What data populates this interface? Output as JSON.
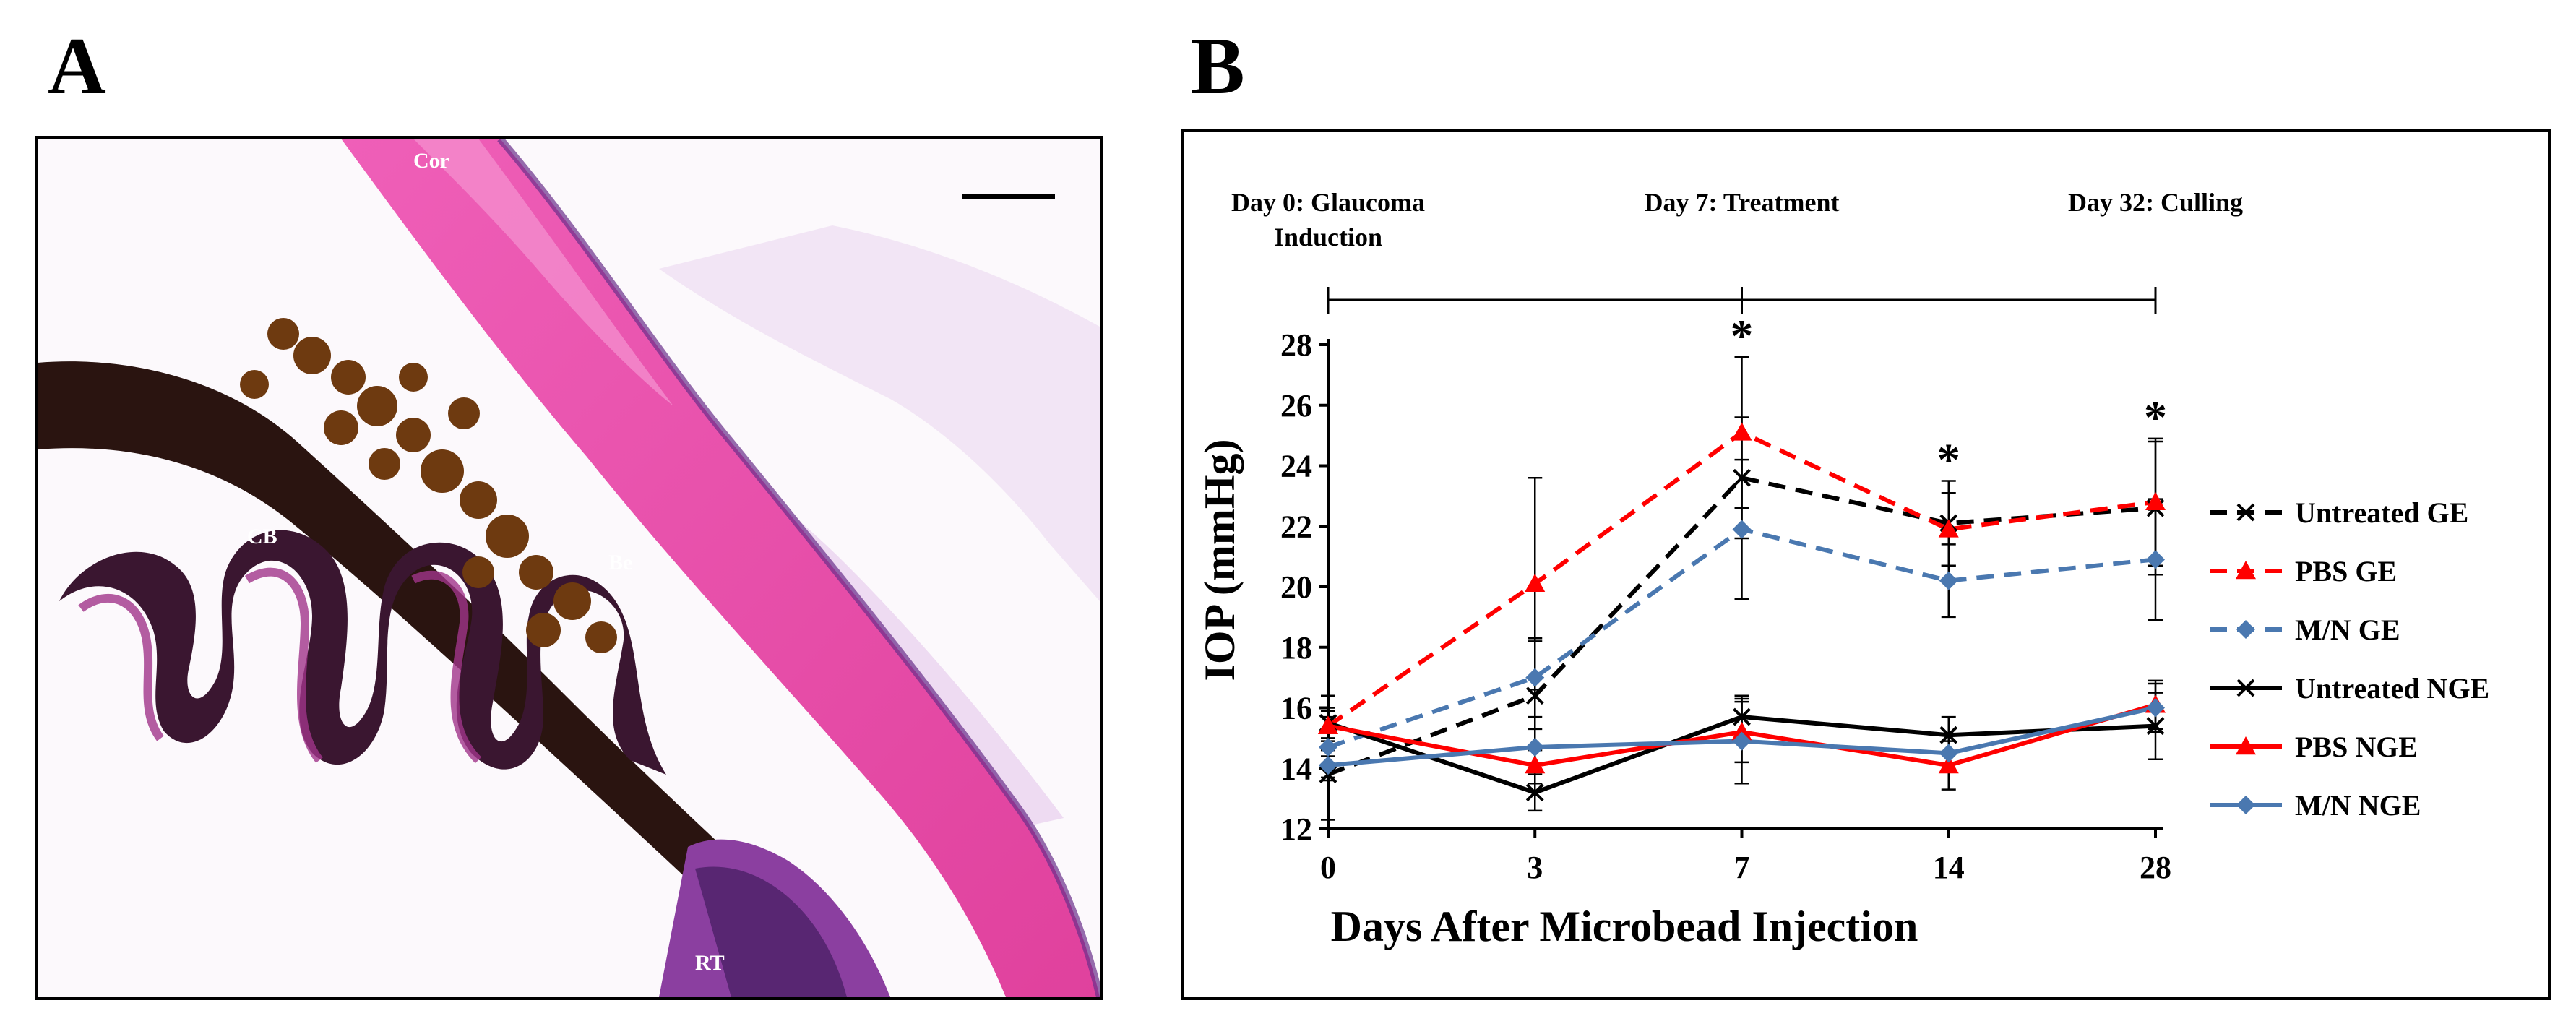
{
  "panel_a": {
    "letter": "A",
    "labels": {
      "cornea": "Cor",
      "ciliary_body": "CB",
      "beads": "Be",
      "retina": "RT"
    }
  },
  "panel_b": {
    "letter": "B"
  },
  "chart_data": {
    "type": "line",
    "timeline": {
      "events": [
        {
          "day": 0,
          "label_lines": [
            "Day 0: Glaucoma",
            "Induction"
          ]
        },
        {
          "day": 7,
          "label_lines": [
            "Day 7: Treatment"
          ]
        },
        {
          "day": 32,
          "label_lines": [
            "Day 32: Culling"
          ]
        }
      ]
    },
    "categories": [
      "0",
      "3",
      "7",
      "14",
      "28"
    ],
    "ylabel": "IOP (mmHg)",
    "xlabel": "Days After Microbead Injection",
    "ylim": [
      12,
      28
    ],
    "yticks": [
      12,
      14,
      16,
      18,
      20,
      22,
      24,
      26,
      28
    ],
    "significance": [
      {
        "category": "7",
        "label": "*"
      },
      {
        "category": "14",
        "label": "*"
      },
      {
        "category": "28",
        "label": "*"
      }
    ],
    "series": [
      {
        "name": "Untreated GE",
        "color": "#000000",
        "dash": true,
        "marker": "x",
        "values": [
          13.8,
          16.4,
          23.6,
          22.1,
          22.6
        ],
        "errors": [
          1.5,
          1.8,
          2.0,
          1.4,
          2.2
        ]
      },
      {
        "name": "PBS GE",
        "color": "#ff0000",
        "dash": true,
        "marker": "triangle",
        "values": [
          15.4,
          20.1,
          25.1,
          21.9,
          22.8
        ],
        "errors": [
          1.0,
          3.5,
          2.5,
          1.2,
          2.1
        ]
      },
      {
        "name": "M/N GE",
        "color": "#4a78b0",
        "dash": true,
        "marker": "diamond",
        "values": [
          14.7,
          17.0,
          21.9,
          20.2,
          20.9
        ],
        "errors": [
          1.0,
          1.3,
          2.3,
          1.2,
          2.0
        ]
      },
      {
        "name": "Untreated NGE",
        "color": "#000000",
        "dash": false,
        "marker": "x",
        "values": [
          15.5,
          13.2,
          15.7,
          15.1,
          15.4
        ],
        "errors": [
          0.5,
          0.6,
          0.7,
          0.6,
          1.1
        ]
      },
      {
        "name": "PBS NGE",
        "color": "#ff0000",
        "dash": false,
        "marker": "triangle",
        "values": [
          15.4,
          14.1,
          15.2,
          14.1,
          16.1
        ],
        "errors": [
          0.5,
          0.6,
          1.0,
          0.8,
          0.8
        ]
      },
      {
        "name": "M/N NGE",
        "color": "#4a78b0",
        "dash": false,
        "marker": "diamond",
        "values": [
          14.1,
          14.7,
          14.9,
          14.5,
          16.0
        ],
        "errors": [
          0.5,
          0.6,
          1.4,
          0.6,
          0.8
        ]
      }
    ]
  }
}
